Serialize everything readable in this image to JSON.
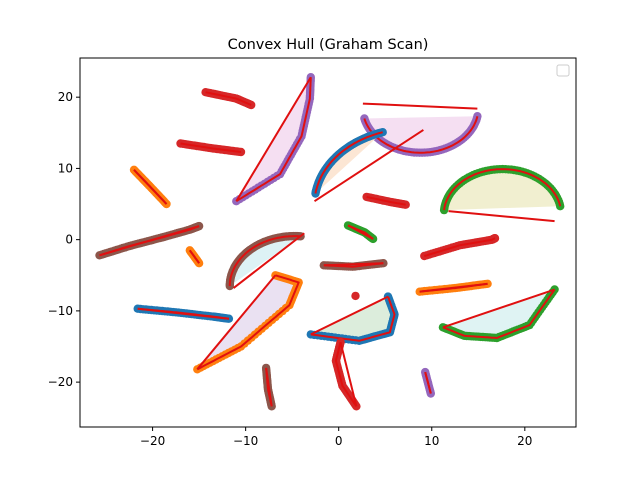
{
  "chart_data": {
    "type": "scatter",
    "title": "Convex Hull (Graham Scan)",
    "xlabel": "",
    "ylabel": "",
    "xlim": [
      -27.8,
      25.5
    ],
    "ylim": [
      -26.3,
      25.5
    ],
    "xticks": [
      -20,
      -10,
      0,
      10,
      20
    ],
    "yticks": [
      -20,
      -10,
      0,
      10,
      20
    ],
    "grid": false,
    "legend": {
      "placement": "top-right",
      "entries": []
    },
    "hull_color": "#e01010",
    "series": [
      {
        "color": "#9467bd",
        "kind": "arc",
        "cx": 8.8,
        "cy": 18.4,
        "r": 6.2,
        "start": 193,
        "end": 350,
        "hull": [
          [
            2.6,
            19.1
          ],
          [
            14.9,
            18.4
          ]
        ],
        "fill": "#f3d9f0"
      },
      {
        "color": "#9467bd",
        "kind": "curve",
        "points": [
          [
            -11.0,
            5.4
          ],
          [
            -6.3,
            9.2
          ],
          [
            -4.0,
            14.5
          ],
          [
            -3.1,
            19.8
          ],
          [
            -3.0,
            22.8
          ]
        ],
        "hull": [
          [
            -11.0,
            5.4
          ],
          [
            -3.0,
            22.8
          ]
        ],
        "fill": "#f3d9f0"
      },
      {
        "color": "#1f77b4",
        "kind": "arc",
        "cx": 8.0,
        "cy": 5.0,
        "r": 10.6,
        "start": 108,
        "end": 172,
        "hull": [
          [
            -2.6,
            5.4
          ],
          [
            9.1,
            15.4
          ]
        ],
        "fill": "#fbe2cc"
      },
      {
        "color": "#2ca02c",
        "kind": "arc",
        "cx": 17.6,
        "cy": 3.6,
        "r": 6.3,
        "start": 10,
        "end": 175,
        "hull": [
          [
            11.8,
            4.0
          ],
          [
            23.2,
            2.6
          ]
        ],
        "fill": "#eeecc8"
      },
      {
        "color": "#8c564b",
        "kind": "arc",
        "cx": -4.7,
        "cy": -6.5,
        "r": 7.0,
        "start": 85,
        "end": 180,
        "hull": [
          [
            -11.3,
            -6.8
          ],
          [
            -3.7,
            0.9
          ]
        ],
        "fill": "#d7f0f3"
      },
      {
        "color": "#ff7f0e",
        "kind": "curve",
        "points": [
          [
            -15.2,
            -18.2
          ],
          [
            -10.5,
            -15.0
          ],
          [
            -5.3,
            -9.2
          ],
          [
            -4.3,
            -6.0
          ],
          [
            -6.8,
            -5.0
          ]
        ],
        "hull": [
          [
            -15.2,
            -18.2
          ],
          [
            -6.8,
            -5.0
          ]
        ],
        "fill": "#e6dcf0"
      },
      {
        "color": "#1f77b4",
        "kind": "curve",
        "points": [
          [
            -3.0,
            -13.3
          ],
          [
            2.2,
            -14.2
          ],
          [
            5.5,
            -13.0
          ],
          [
            6.0,
            -10.5
          ],
          [
            5.3,
            -8.0
          ]
        ],
        "hull": [
          [
            -3.0,
            -13.3
          ],
          [
            5.3,
            -8.0
          ]
        ],
        "fill": "#d6ead6"
      },
      {
        "color": "#2ca02c",
        "kind": "curve",
        "points": [
          [
            11.2,
            -12.3
          ],
          [
            13.5,
            -13.5
          ],
          [
            17.0,
            -13.8
          ],
          [
            20.5,
            -12.0
          ],
          [
            23.2,
            -7.0
          ]
        ],
        "hull": [
          [
            11.2,
            -12.3
          ],
          [
            23.2,
            -7.0
          ]
        ],
        "fill": "#d9f1f1"
      },
      {
        "color": "#8c564b",
        "kind": "line",
        "points": [
          [
            -25.7,
            -2.2
          ],
          [
            -22.5,
            -0.9
          ],
          [
            -19.0,
            0.3
          ],
          [
            -16.0,
            1.4
          ],
          [
            -15.0,
            1.9
          ]
        ],
        "hull": [
          [
            -25.7,
            -2.2
          ],
          [
            -15.0,
            1.9
          ]
        ]
      },
      {
        "color": "#1f77b4",
        "kind": "line",
        "points": [
          [
            -21.6,
            -9.7
          ],
          [
            -17.5,
            -10.2
          ],
          [
            -13.5,
            -10.8
          ],
          [
            -11.8,
            -11.1
          ]
        ],
        "hull": [
          [
            -21.6,
            -9.7
          ],
          [
            -11.8,
            -11.1
          ]
        ]
      },
      {
        "color": "#ff7f0e",
        "kind": "line",
        "points": [
          [
            -22.0,
            9.8
          ],
          [
            -20.3,
            7.5
          ],
          [
            -18.5,
            5.0
          ]
        ],
        "hull": [
          [
            -22.0,
            9.8
          ],
          [
            -18.5,
            5.0
          ]
        ]
      },
      {
        "color": "#ff7f0e",
        "kind": "line",
        "points": [
          [
            -16.0,
            -1.5
          ],
          [
            -15.0,
            -3.3
          ]
        ],
        "hull": [
          [
            -16.0,
            -1.5
          ],
          [
            -15.0,
            -3.3
          ]
        ]
      },
      {
        "color": "#d62728",
        "kind": "line",
        "points": [
          [
            -14.3,
            20.7
          ],
          [
            -11.0,
            19.8
          ],
          [
            -9.4,
            18.9
          ]
        ],
        "hull": []
      },
      {
        "color": "#d62728",
        "kind": "line",
        "points": [
          [
            -17.0,
            13.5
          ],
          [
            -13.5,
            12.8
          ],
          [
            -10.5,
            12.3
          ]
        ],
        "hull": []
      },
      {
        "color": "#8c564b",
        "kind": "line",
        "points": [
          [
            -1.6,
            -3.6
          ],
          [
            1.5,
            -3.8
          ],
          [
            4.8,
            -3.3
          ]
        ],
        "hull": [
          [
            -1.6,
            -3.6
          ],
          [
            4.8,
            -3.3
          ]
        ]
      },
      {
        "color": "#2ca02c",
        "kind": "line",
        "points": [
          [
            1.0,
            2.0
          ],
          [
            2.8,
            1.0
          ],
          [
            3.7,
            0.1
          ]
        ],
        "hull": [
          [
            1.0,
            2.0
          ],
          [
            3.7,
            0.1
          ]
        ]
      },
      {
        "color": "#d62728",
        "kind": "line",
        "points": [
          [
            3.0,
            6.0
          ],
          [
            5.5,
            5.3
          ],
          [
            7.2,
            4.9
          ]
        ],
        "hull": []
      },
      {
        "color": "#d62728",
        "kind": "line",
        "points": [
          [
            9.2,
            -2.3
          ],
          [
            13.0,
            -0.8
          ],
          [
            16.5,
            0.0
          ],
          [
            16.8,
            0.2
          ]
        ],
        "hull": []
      },
      {
        "color": "#ff7f0e",
        "kind": "line",
        "points": [
          [
            8.7,
            -7.3
          ],
          [
            12.5,
            -6.8
          ],
          [
            16.0,
            -6.2
          ]
        ],
        "hull": [
          [
            8.7,
            -7.3
          ],
          [
            16.0,
            -6.2
          ]
        ]
      },
      {
        "color": "#d62728",
        "kind": "point",
        "points": [
          [
            1.8,
            -7.9
          ]
        ],
        "hull": []
      },
      {
        "color": "#8c564b",
        "kind": "line",
        "points": [
          [
            -7.8,
            -18.0
          ],
          [
            -7.6,
            -21.0
          ],
          [
            -7.2,
            -23.4
          ]
        ],
        "hull": [
          [
            -7.8,
            -18.0
          ],
          [
            -7.2,
            -23.4
          ]
        ]
      },
      {
        "color": "#d62728",
        "kind": "line",
        "points": [
          [
            0.2,
            -14.4
          ],
          [
            -0.3,
            -17.0
          ],
          [
            0.4,
            -20.5
          ],
          [
            1.9,
            -23.4
          ]
        ],
        "hull": [
          [
            0.2,
            -14.4
          ],
          [
            1.9,
            -23.4
          ]
        ]
      },
      {
        "color": "#9467bd",
        "kind": "line",
        "points": [
          [
            9.3,
            -18.6
          ],
          [
            9.9,
            -21.6
          ]
        ],
        "hull": [
          [
            9.3,
            -18.6
          ],
          [
            9.9,
            -21.6
          ]
        ]
      }
    ]
  }
}
